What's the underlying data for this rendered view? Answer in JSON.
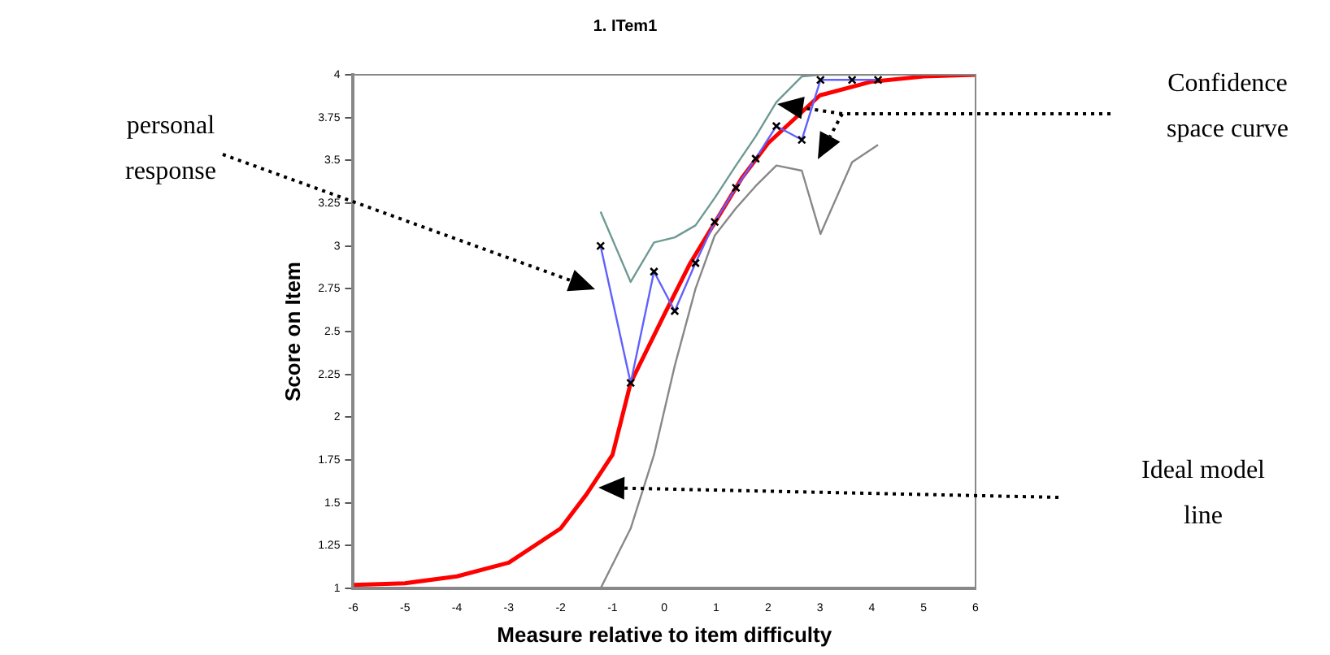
{
  "chart_data": {
    "type": "line",
    "title": "1. ITem1",
    "xlabel": "Measure relative to item difficulty",
    "ylabel": "Score on Item",
    "annotations": [
      "personal response",
      "Confidence space curve",
      "Ideal model line"
    ],
    "xlim": [
      -6,
      6
    ],
    "xticks": [
      -6,
      -5,
      -4,
      -3,
      -2,
      -1,
      0,
      1,
      2,
      3,
      4,
      5,
      6
    ],
    "ylim": [
      1,
      4
    ],
    "yticks": [
      1,
      1.25,
      1.5,
      1.75,
      2,
      2.25,
      2.5,
      2.75,
      3,
      3.25,
      3.5,
      3.75,
      4
    ],
    "grid": false,
    "legend": false,
    "line_style": "solid",
    "series": [
      {
        "color": "#6f9a94",
        "marker": "none",
        "x": [
          -1.23,
          -0.65,
          -0.2,
          0.2,
          0.6,
          0.97,
          1.38,
          1.76,
          2.16,
          2.65,
          3.01,
          3.62,
          4.12
        ],
        "values": [
          3.2,
          2.79,
          3.02,
          3.05,
          3.12,
          3.28,
          3.47,
          3.64,
          3.84,
          3.99,
          4,
          4,
          4
        ]
      },
      {
        "color": "#888888",
        "marker": "none",
        "x": [
          -1.23,
          -0.65,
          -0.2,
          0.2,
          0.6,
          0.97,
          1.38,
          1.76,
          2.16,
          2.65,
          3.01,
          3.62,
          4.12
        ],
        "values": [
          1,
          1.35,
          1.78,
          2.3,
          2.75,
          3.06,
          3.22,
          3.35,
          3.47,
          3.44,
          3.07,
          3.49,
          3.59
        ]
      },
      {
        "color": "#ff0000",
        "marker": "none",
        "x": [
          -6,
          -5,
          -4,
          -3,
          -2,
          -1.5,
          -1,
          -0.65,
          0,
          0.5,
          1,
          1.5,
          2,
          3,
          4,
          5,
          6
        ],
        "values": [
          1.02,
          1.03,
          1.07,
          1.15,
          1.35,
          1.55,
          1.78,
          2.2,
          2.6,
          2.9,
          3.15,
          3.4,
          3.6,
          3.88,
          3.96,
          3.99,
          4
        ]
      },
      {
        "color": "#6060ff",
        "marker": "cross",
        "x": [
          -1.23,
          -0.65,
          -0.2,
          0.2,
          0.6,
          0.97,
          1.38,
          1.76,
          2.16,
          2.65,
          3.01,
          3.62,
          4.12
        ],
        "values": [
          3,
          2.2,
          2.85,
          2.62,
          2.9,
          3.14,
          3.34,
          3.51,
          3.7,
          3.62,
          3.97,
          3.97,
          3.97
        ]
      }
    ]
  }
}
